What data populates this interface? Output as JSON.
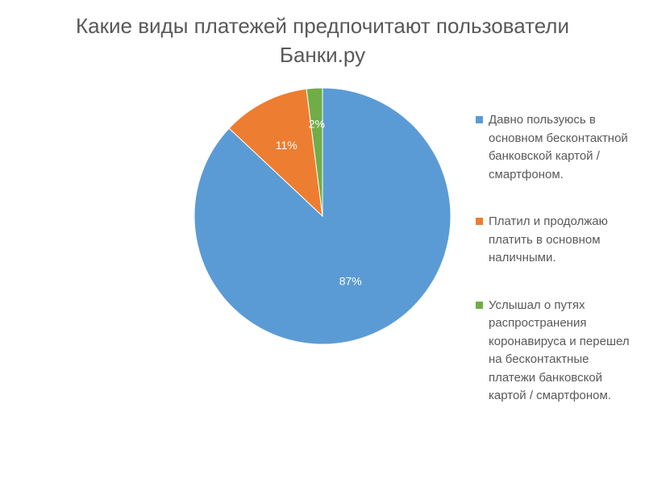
{
  "chart_data": {
    "type": "pie",
    "title": "Какие виды платежей предпочитают пользователи Банки.ру",
    "title_lines": [
      "Какие виды платежей предпочитают пользователи",
      "Банки.ру"
    ],
    "categories": [
      "Давно пользуюсь в основном бесконтактной банковской картой / смартфоном.",
      "Платил и продолжаю платить в основном наличными.",
      "Услышал о путях распространения коронавируса и перешел на бесконтактные платежи банковской картой / смартфоном."
    ],
    "legend_lines": [
      [
        "Давно пользуюсь в",
        "основном бесконтактной",
        "банковской картой /",
        "смартфоном."
      ],
      [
        "Платил и продолжаю",
        "платить в основном",
        "наличными."
      ],
      [
        "Услышал о путях",
        "распространения",
        "коронавируса и перешел",
        "на бесконтактные",
        "платежи банковской",
        "картой / смартфоном."
      ]
    ],
    "values": [
      87,
      11,
      2
    ],
    "data_labels": [
      "87%",
      "11%",
      "2%"
    ],
    "colors": [
      "#5B9BD5",
      "#ED7D31",
      "#70AD47"
    ],
    "legend_position": "right"
  }
}
